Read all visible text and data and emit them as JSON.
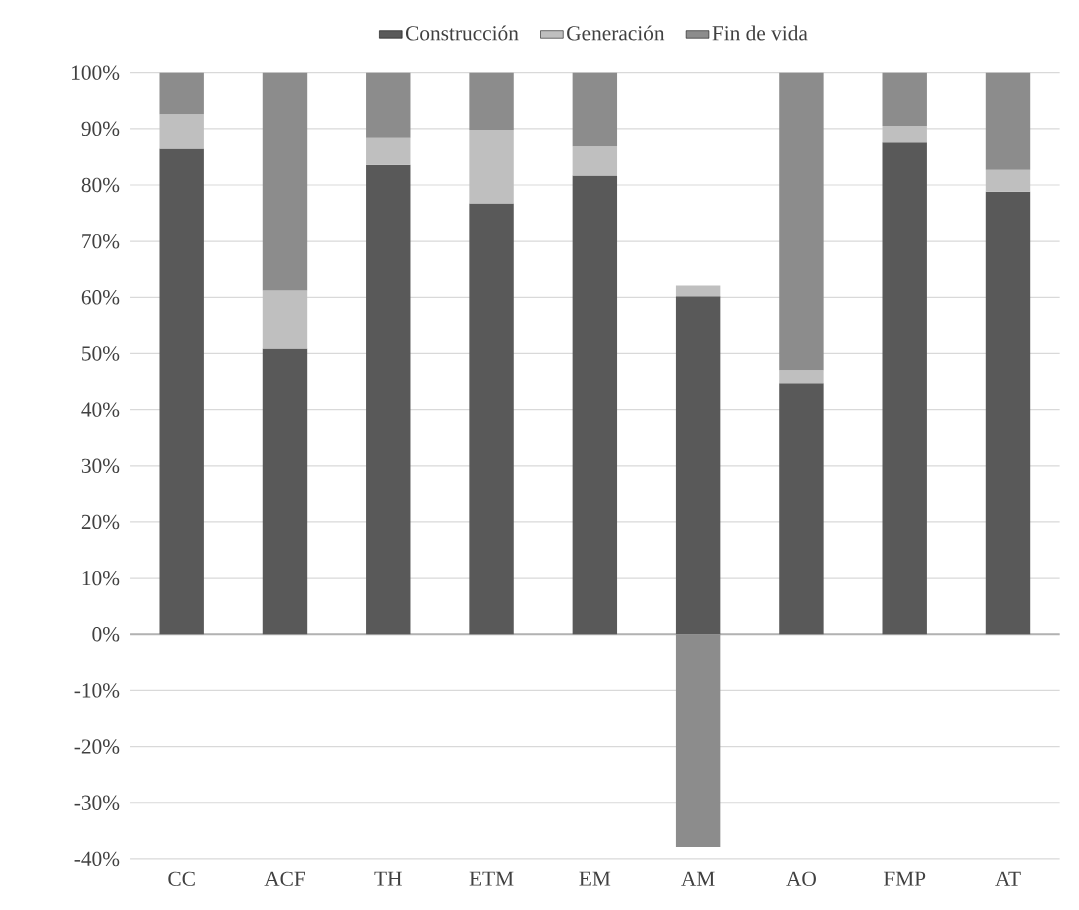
{
  "chart_data": {
    "type": "bar",
    "stacked": true,
    "categories": [
      "CC",
      "ACF",
      "TH",
      "ETM",
      "EM",
      "AM",
      "AO",
      "FMP",
      "AT"
    ],
    "series": [
      {
        "name": "Construcción",
        "color": "#595959",
        "values": [
          86.5,
          50.9,
          83.6,
          76.7,
          81.7,
          60.2,
          44.7,
          87.6,
          78.8
        ]
      },
      {
        "name": "Generación",
        "color": "#bfbfbf",
        "values": [
          6.1,
          10.3,
          4.8,
          13.1,
          5.2,
          1.9,
          2.3,
          2.9,
          3.9
        ]
      },
      {
        "name": "Fin de vida",
        "color": "#8c8c8c",
        "values": [
          7.4,
          38.8,
          11.6,
          10.2,
          13.1,
          -37.9,
          53.0,
          9.5,
          17.3
        ]
      }
    ],
    "ylim": [
      -40,
      100
    ],
    "yticks": [
      {
        "value": -40,
        "label": "-40%"
      },
      {
        "value": -30,
        "label": "-30%"
      },
      {
        "value": -20,
        "label": "-20%"
      },
      {
        "value": -10,
        "label": "-10%"
      },
      {
        "value": 0,
        "label": "0%"
      },
      {
        "value": 10,
        "label": "10%"
      },
      {
        "value": 20,
        "label": "20%"
      },
      {
        "value": 30,
        "label": "30%"
      },
      {
        "value": 40,
        "label": "40%"
      },
      {
        "value": 50,
        "label": "50%"
      },
      {
        "value": 60,
        "label": "60%"
      },
      {
        "value": 70,
        "label": "70%"
      },
      {
        "value": 80,
        "label": "80%"
      },
      {
        "value": 90,
        "label": "90%"
      },
      {
        "value": 100,
        "label": "100%"
      }
    ],
    "grid": "y",
    "legend": "top"
  }
}
